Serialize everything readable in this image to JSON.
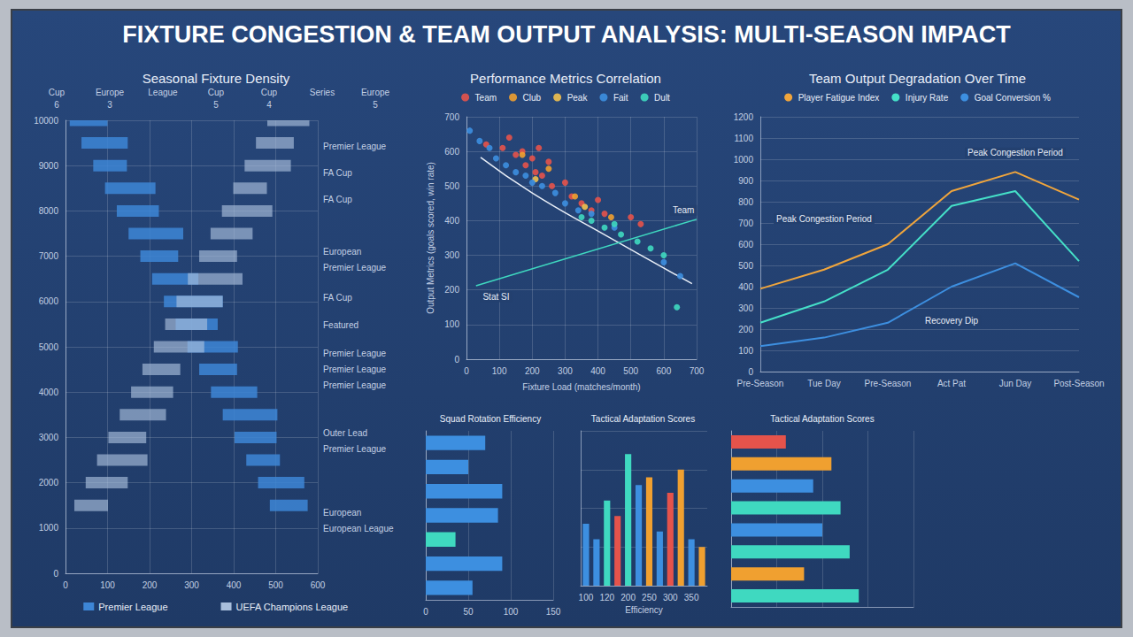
{
  "title": "FIXTURE CONGESTION & TEAM OUTPUT ANALYSIS: MULTI-SEASON IMPACT",
  "chart_data": [
    {
      "type": "bar",
      "orientation": "horizontal",
      "title": "Seasonal Fixture Density",
      "header": [
        {
          "text": "Cup",
          "number": 6
        },
        {
          "text": "Europe",
          "number": 3
        },
        {
          "text": "League"
        },
        {
          "text": "Cup",
          "number": 5
        },
        {
          "text": "Cup",
          "number": 4
        },
        {
          "text": "Series"
        },
        {
          "text": "Europe",
          "number": 5
        }
      ],
      "series": [
        {
          "name": "Premier League",
          "color": "#3d86d6",
          "y": [
            10000,
            9500,
            9000,
            8500,
            8000,
            7500,
            7000,
            6500,
            6000,
            5500,
            5000,
            4500,
            4000,
            3500,
            3000,
            2500,
            2000,
            1500
          ],
          "values": [
            [
              10,
              100
            ],
            [
              38,
              148
            ],
            [
              66,
              146
            ],
            [
              94,
              214
            ],
            [
              122,
              222
            ],
            [
              150,
              280
            ],
            [
              178,
              268
            ],
            [
              206,
              316
            ],
            [
              234,
              374
            ],
            [
              262,
              362
            ],
            [
              290,
              410
            ],
            [
              318,
              408
            ],
            [
              346,
              456
            ],
            [
              374,
              504
            ],
            [
              402,
              502
            ],
            [
              430,
              510
            ],
            [
              458,
              568
            ],
            [
              486,
              576
            ]
          ]
        },
        {
          "name": "UEFA Champions League",
          "color": "#a9bfdc",
          "y": [
            10000,
            9500,
            9000,
            8500,
            8000,
            7500,
            7000,
            6500,
            6000,
            5500,
            5000,
            4500,
            4000,
            3500,
            3000,
            2500,
            2000,
            1500
          ],
          "values": [
            [
              480,
              580
            ],
            [
              453,
              543
            ],
            [
              426,
              536
            ],
            [
              399,
              479
            ],
            [
              372,
              492
            ],
            [
              345,
              445
            ],
            [
              318,
              408
            ],
            [
              291,
              421
            ],
            [
              264,
              374
            ],
            [
              237,
              337
            ],
            [
              210,
              330
            ],
            [
              183,
              273
            ],
            [
              156,
              256
            ],
            [
              129,
              239
            ],
            [
              102,
              192
            ],
            [
              75,
              195
            ],
            [
              48,
              148
            ],
            [
              21,
              101
            ]
          ]
        }
      ],
      "right_labels": [
        {
          "text": "Premier League",
          "y": 9415
        },
        {
          "text": "FA Cup",
          "y": 8830
        },
        {
          "text": "FA Cup",
          "y": 8245
        },
        {
          "text": "European",
          "y": 7105
        },
        {
          "text": "Premier League",
          "y": 6755
        },
        {
          "text": "FA Cup",
          "y": 6080
        },
        {
          "text": "Featured",
          "y": 5470
        },
        {
          "text": "Premier League",
          "y": 4855
        },
        {
          "text": "Premier League",
          "y": 4500
        },
        {
          "text": "Premier League",
          "y": 4150
        },
        {
          "text": "Outer Lead",
          "y": 3100
        },
        {
          "text": "Premier League",
          "y": 2750
        },
        {
          "text": "European",
          "y": 1345
        },
        {
          "text": "European League",
          "y": 995
        }
      ],
      "xlim": [
        0,
        600
      ],
      "xticks": [
        0,
        100,
        200,
        300,
        400,
        500,
        600
      ],
      "ylim": [
        0,
        10000
      ],
      "yticks": [
        0,
        1000,
        2000,
        3000,
        4000,
        5000,
        6000,
        7000,
        8000,
        9000,
        10000
      ],
      "grid": true,
      "legend": "bottom"
    },
    {
      "type": "scatter",
      "title": "Performance Metrics Correlation",
      "xlabel": "Fixture Load (matches/month)",
      "ylabel": "Output Metrics (goals scored, win rate)",
      "series": [
        {
          "name": "Team",
          "color": "#e5534b",
          "values": [
            [
              60,
              620
            ],
            [
              110,
              610
            ],
            [
              130,
              640
            ],
            [
              150,
              590
            ],
            [
              170,
              600
            ],
            [
              180,
              560
            ],
            [
              200,
              580
            ],
            [
              210,
              540
            ],
            [
              220,
              610
            ],
            [
              230,
              530
            ],
            [
              250,
              570
            ],
            [
              260,
              500
            ],
            [
              300,
              510
            ],
            [
              320,
              470
            ],
            [
              350,
              450
            ],
            [
              380,
              430
            ],
            [
              400,
              460
            ],
            [
              420,
              420
            ],
            [
              500,
              410
            ],
            [
              530,
              390
            ]
          ]
        },
        {
          "name": "Club",
          "color": "#f0a030",
          "values": [
            [
              170,
              590
            ],
            [
              250,
              550
            ],
            [
              330,
              470
            ],
            [
              440,
              410
            ]
          ]
        },
        {
          "name": "Peak",
          "color": "#f2c14e",
          "values": [
            [
              210,
              520
            ],
            [
              360,
              440
            ]
          ]
        },
        {
          "name": "Fait",
          "color": "#3d8fe0",
          "values": [
            [
              10,
              660
            ],
            [
              40,
              630
            ],
            [
              70,
              610
            ],
            [
              90,
              580
            ],
            [
              120,
              560
            ],
            [
              150,
              540
            ],
            [
              180,
              530
            ],
            [
              200,
              510
            ],
            [
              230,
              500
            ],
            [
              270,
              480
            ],
            [
              300,
              450
            ],
            [
              340,
              430
            ],
            [
              380,
              420
            ],
            [
              450,
              380
            ],
            [
              600,
              280
            ],
            [
              650,
              240
            ]
          ]
        },
        {
          "name": "Dult",
          "color": "#3fd9c0",
          "values": [
            [
              350,
              410
            ],
            [
              380,
              400
            ],
            [
              420,
              380
            ],
            [
              450,
              390
            ],
            [
              470,
              360
            ],
            [
              520,
              340
            ],
            [
              560,
              320
            ],
            [
              600,
              300
            ],
            [
              640,
              150
            ]
          ]
        }
      ],
      "trend_lines": [
        {
          "color": "#e8eef7",
          "points": [
            [
              43,
              583
            ],
            [
              200,
              480
            ],
            [
              400,
              370
            ],
            [
              686,
              218
            ]
          ]
        },
        {
          "color": "#3fd9c0",
          "points": [
            [
              29,
              212
            ],
            [
              700,
              404
            ]
          ]
        }
      ],
      "annotations": [
        {
          "text": "Team",
          "x": 660,
          "y": 430
        },
        {
          "text": "Stat SI",
          "x": 90,
          "y": 180
        }
      ],
      "xlim": [
        0,
        700
      ],
      "xticks": [
        0,
        100,
        200,
        300,
        400,
        500,
        600,
        700
      ],
      "ylim": [
        0,
        700
      ],
      "yticks": [
        0,
        100,
        200,
        300,
        400,
        500,
        600,
        700
      ],
      "grid": true,
      "legend": "top"
    },
    {
      "type": "line",
      "title": "Team Output Degradation Over Time",
      "categories": [
        "Pre-Season",
        "Tue Day",
        "Pre-Season",
        "Act Pat",
        "Jun Day",
        "Post-Season"
      ],
      "series": [
        {
          "name": "Player Fatigue Index",
          "color": "#f0a53c",
          "values": [
            390,
            480,
            600,
            850,
            940,
            810
          ]
        },
        {
          "name": "Injury Rate",
          "color": "#45e0c8",
          "values": [
            230,
            330,
            480,
            780,
            850,
            520
          ]
        },
        {
          "name": "Goal Conversion %",
          "color": "#3d8fe0",
          "values": [
            120,
            160,
            230,
            400,
            510,
            350
          ]
        }
      ],
      "annotations": [
        {
          "text": "Peak Congestion Period",
          "x": "Jun Day",
          "y": 1030
        },
        {
          "text": "Peak Congestion Period",
          "x": "Tue Day",
          "y": 720
        },
        {
          "text": "Recovery Dip",
          "x": "Act Pat",
          "y": 240
        }
      ],
      "ylim": [
        0,
        1200
      ],
      "yticks": [
        0,
        100,
        200,
        300,
        400,
        500,
        600,
        700,
        800,
        900,
        1000,
        1100,
        1200
      ],
      "grid": true,
      "legend": "top"
    },
    {
      "type": "bar",
      "orientation": "horizontal",
      "title": "Squad Rotation Efficiency",
      "categories": [
        null,
        null,
        null,
        null,
        null,
        null,
        null
      ],
      "values": [
        70,
        50,
        90,
        85,
        35,
        90,
        55
      ],
      "colors": [
        "#3d8fe0",
        "#3d8fe0",
        "#3d8fe0",
        "#3d8fe0",
        "#3fd9c0",
        "#3d8fe0",
        "#3d8fe0"
      ],
      "xlim": [
        0,
        150
      ],
      "xticks": [
        0,
        50,
        100,
        150
      ],
      "grid": true,
      "tick_labels": "x"
    },
    {
      "type": "bar",
      "title": "Tactical Adaptation Scores",
      "xlabel": "Efficiency",
      "categories": [
        "100",
        null,
        "120",
        null,
        "200",
        null,
        "250",
        null,
        "300",
        null,
        "350",
        null
      ],
      "values": [
        40,
        30,
        55,
        45,
        85,
        65,
        70,
        35,
        60,
        75,
        30,
        25
      ],
      "colors": [
        "#3d8fe0",
        "#3d8fe0",
        "#3fd9c0",
        "#e5534b",
        "#3fd9c0",
        "#3d8fe0",
        "#f0a030",
        "#3d8fe0",
        "#e5534b",
        "#f0a030",
        "#3d8fe0",
        "#f0a030"
      ],
      "ylim": [
        0,
        100
      ],
      "yticks": [
        0,
        25,
        50,
        75,
        100
      ],
      "grid": true,
      "tick_labels": "x"
    },
    {
      "type": "bar",
      "orientation": "horizontal",
      "title": "Tactical Adaptation Scores",
      "categories": [
        null,
        null,
        null,
        null,
        null,
        null,
        null,
        null
      ],
      "values": [
        30,
        55,
        45,
        60,
        50,
        65,
        40,
        70
      ],
      "colors": [
        "#e5534b",
        "#f0a030",
        "#3d8fe0",
        "#3fd9c0",
        "#3d8fe0",
        "#3fd9c0",
        "#f0a030",
        "#3fd9c0"
      ],
      "xlim": [
        0,
        100
      ],
      "xticks": [
        0,
        25,
        50,
        75,
        100
      ],
      "grid": true,
      "tick_labels": false
    }
  ]
}
